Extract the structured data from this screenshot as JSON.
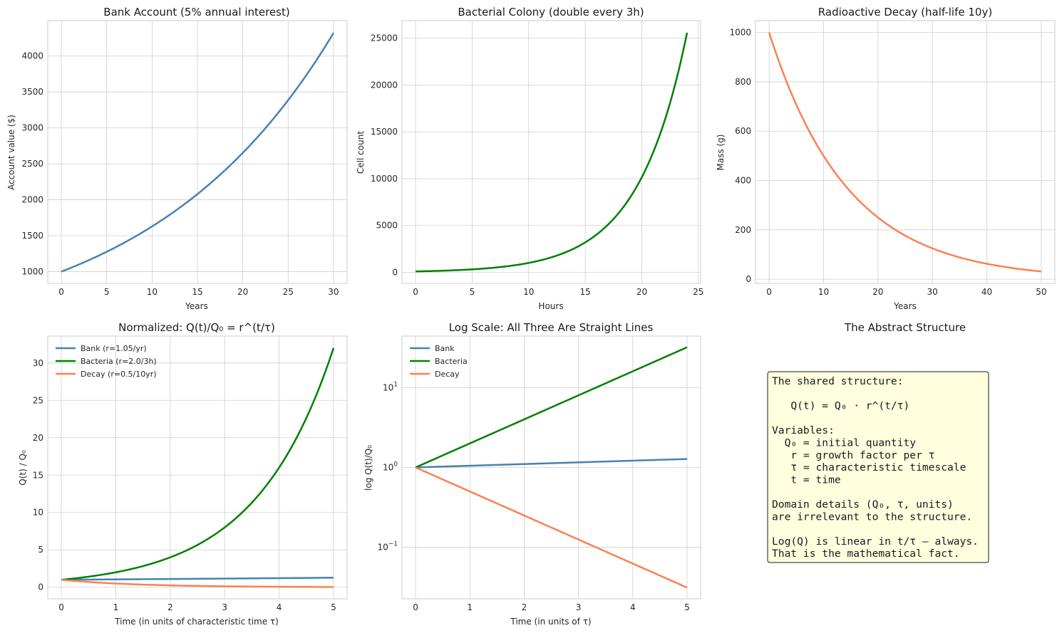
{
  "chart_data": [
    {
      "id": "bank",
      "type": "line",
      "title": "Bank Account (5% annual interest)",
      "xlabel": "Years",
      "ylabel": "Account value ($)",
      "xlim": [
        -1.5,
        31.5
      ],
      "ylim": [
        836,
        4493
      ],
      "xticks": [
        0,
        5,
        10,
        15,
        20,
        25,
        30
      ],
      "yticks": [
        1000,
        1500,
        2000,
        2500,
        3000,
        3500,
        4000
      ],
      "series": [
        {
          "name": "Bank",
          "color": "#4682B4",
          "x_range": [
            0,
            30
          ],
          "function": {
            "kind": "exp",
            "q0": 1000,
            "r": 1.05,
            "tau": 1
          }
        }
      ]
    },
    {
      "id": "bacteria",
      "type": "line",
      "title": "Bacterial Colony (double every 3h)",
      "xlabel": "Hours",
      "ylabel": "Cell count",
      "xlim": [
        -1.2,
        25.2
      ],
      "ylim": [
        -1180,
        26880
      ],
      "xticks": [
        0,
        5,
        10,
        15,
        20,
        25
      ],
      "yticks": [
        0,
        5000,
        10000,
        15000,
        20000,
        25000
      ],
      "series": [
        {
          "name": "Bacteria",
          "color": "#008000",
          "x_range": [
            0,
            24
          ],
          "function": {
            "kind": "exp",
            "q0": 100,
            "r": 2,
            "tau": 3
          }
        }
      ]
    },
    {
      "id": "decay",
      "type": "line",
      "title": "Radioactive Decay (half-life 10y)",
      "xlabel": "Years",
      "ylabel": "Mass (g)",
      "xlim": [
        -2.5,
        52.5
      ],
      "ylim": [
        -17,
        1048
      ],
      "xticks": [
        0,
        10,
        20,
        30,
        40,
        50
      ],
      "yticks": [
        0,
        200,
        400,
        600,
        800,
        1000
      ],
      "series": [
        {
          "name": "Decay",
          "color": "#FF7F50",
          "x_range": [
            0,
            50
          ],
          "function": {
            "kind": "exp",
            "q0": 1000,
            "r": 0.5,
            "tau": 10
          }
        }
      ]
    },
    {
      "id": "normalized",
      "type": "line",
      "title": "Normalized: Q(t)/Q₀ = r^(t/τ)",
      "xlabel": "Time (in units of characteristic time τ)",
      "ylabel": "Q(t) / Q₀",
      "xlim": [
        -0.25,
        5.25
      ],
      "ylim": [
        -1.55,
        33.6
      ],
      "xticks": [
        0,
        1,
        2,
        3,
        4,
        5
      ],
      "yticks": [
        0,
        5,
        10,
        15,
        20,
        25,
        30
      ],
      "legend": "top-left",
      "series": [
        {
          "name": "Bank (r=1.05/yr)",
          "color": "#4682B4",
          "x_range": [
            0,
            5
          ],
          "function": {
            "kind": "exp",
            "q0": 1,
            "r": 1.05,
            "tau": 1
          }
        },
        {
          "name": "Bacteria (r=2.0/3h)",
          "color": "#008000",
          "x_range": [
            0,
            5
          ],
          "function": {
            "kind": "exp",
            "q0": 1,
            "r": 2,
            "tau": 1
          }
        },
        {
          "name": "Decay (r=0.5/10yr)",
          "color": "#FF7F50",
          "x_range": [
            0,
            5
          ],
          "function": {
            "kind": "exp",
            "q0": 1,
            "r": 0.5,
            "tau": 1
          }
        }
      ]
    },
    {
      "id": "logscale",
      "type": "line",
      "title": "Log Scale: All Three Are Straight Lines",
      "xlabel": "Time (in units of τ)",
      "ylabel": "log Q(t)/Q₀",
      "yscale": "log",
      "xlim": [
        -0.25,
        5.25
      ],
      "ylim": [
        0.0226,
        44.2
      ],
      "xticks": [
        0,
        1,
        2,
        3,
        4,
        5
      ],
      "yticks": [
        0.1,
        1,
        10
      ],
      "ytick_labels": [
        {
          "base": "10",
          "exp": "−1"
        },
        {
          "base": "10",
          "exp": "0"
        },
        {
          "base": "10",
          "exp": "1"
        }
      ],
      "legend": "top-left",
      "series": [
        {
          "name": "Bank",
          "color": "#4682B4",
          "x_range": [
            0,
            5
          ],
          "function": {
            "kind": "exp",
            "q0": 1,
            "r": 1.05,
            "tau": 1
          }
        },
        {
          "name": "Bacteria",
          "color": "#008000",
          "x_range": [
            0,
            5
          ],
          "function": {
            "kind": "exp",
            "q0": 1,
            "r": 2,
            "tau": 1
          }
        },
        {
          "name": "Decay",
          "color": "#FF7F50",
          "x_range": [
            0,
            5
          ],
          "function": {
            "kind": "exp",
            "q0": 1,
            "r": 0.5,
            "tau": 1
          }
        }
      ]
    }
  ],
  "textpanel": {
    "title": "The Abstract Structure",
    "lines": [
      "The shared structure:",
      "",
      "   Q(t) = Q₀ · r^(t/τ)",
      "",
      "Variables:",
      "  Q₀ = initial quantity",
      "   r = growth factor per τ",
      "   τ = characteristic timescale",
      "   t = time",
      "",
      "Domain details (Q₀, τ, units)",
      "are irrelevant to the structure.",
      "",
      "Log(Q) is linear in t/τ — always.",
      "That is the mathematical fact."
    ],
    "box_color": "#FFFFE0"
  }
}
